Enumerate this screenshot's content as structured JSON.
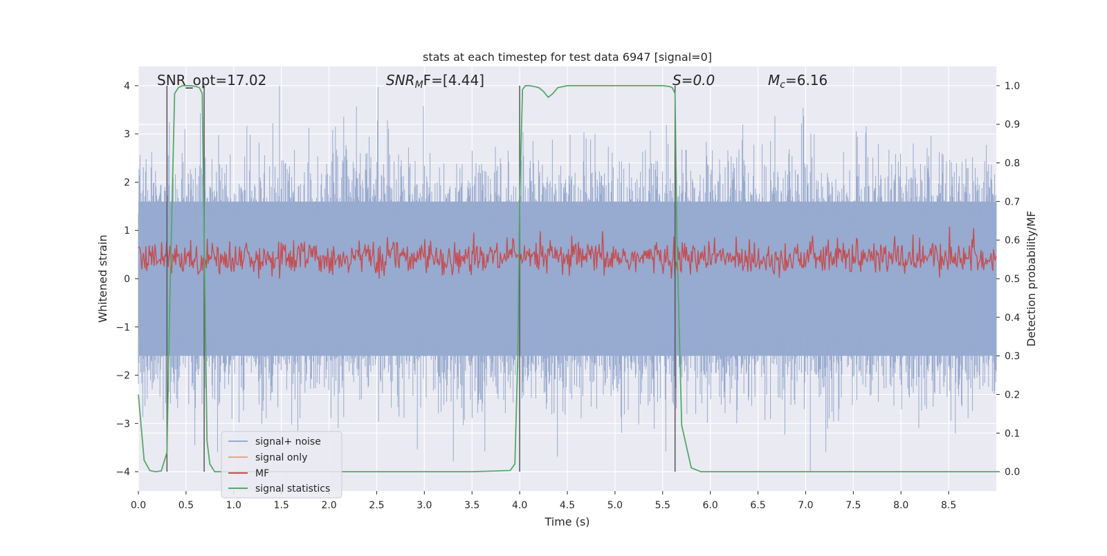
{
  "chart_data": {
    "type": "line",
    "title": "stats at each timestep for test data 6947 [signal=0]",
    "xlabel": "Time (s)",
    "ylabel_left": "Whitened strain",
    "ylabel_right": "Detection probability/MF",
    "xlim": [
      0.0,
      9.0
    ],
    "ylim_left": [
      -4.4,
      4.4
    ],
    "ylim_right": [
      -0.05,
      1.05
    ],
    "x_ticks": [
      0.0,
      0.5,
      1.0,
      1.5,
      2.0,
      2.5,
      3.0,
      3.5,
      4.0,
      4.5,
      5.0,
      5.5,
      6.0,
      6.5,
      7.0,
      7.5,
      8.0,
      8.5
    ],
    "x_tick_labels": [
      "0.0",
      "0.5",
      "1.0",
      "1.5",
      "2.0",
      "2.5",
      "3.0",
      "3.5",
      "4.0",
      "4.5",
      "5.0",
      "5.5",
      "6.0",
      "6.5",
      "7.0",
      "7.5",
      "8.0",
      "8.5"
    ],
    "y_left_ticks": [
      -4,
      -3,
      -2,
      -1,
      0,
      1,
      2,
      3,
      4
    ],
    "y_left_tick_labels": [
      "−4",
      "−3",
      "−2",
      "−1",
      "0",
      "1",
      "2",
      "3",
      "4"
    ],
    "y_right_ticks": [
      0.0,
      0.1,
      0.2,
      0.3,
      0.4,
      0.5,
      0.6,
      0.7,
      0.8,
      0.9,
      1.0
    ],
    "y_right_tick_labels": [
      "0.0",
      "0.1",
      "0.2",
      "0.3",
      "0.4",
      "0.5",
      "0.6",
      "0.7",
      "0.8",
      "0.9",
      "1.0"
    ],
    "grid": true,
    "annotations": {
      "snr_opt": "SNR_opt=17.02",
      "snr_mf_main": "SNR",
      "snr_mf_sub": "M",
      "snr_mf_rest": "F=[4.44]",
      "s_text": "S=0.0",
      "mc_main": "M",
      "mc_sub": "c",
      "mc_rest": "=6.16"
    },
    "vertical_markers_x": [
      0.3,
      0.69,
      4.0,
      5.63
    ],
    "series": [
      {
        "name": "signal+ noise",
        "color": "#97aacf",
        "axis": "left",
        "style": "dense noise band, amplitude about ±1.6 with peaks to ±4"
      },
      {
        "name": "signal only",
        "color": "#e8a58a",
        "axis": "left",
        "x": [],
        "y": []
      },
      {
        "name": "MF",
        "color": "#c44e52",
        "axis": "right",
        "style": "noisy band between 0.50 and 0.62 detection-axis units"
      },
      {
        "name": "signal statistics",
        "color": "#55a868",
        "axis": "right",
        "x": [
          0.0,
          0.06,
          0.12,
          0.18,
          0.24,
          0.3,
          0.33,
          0.38,
          0.42,
          0.46,
          0.5,
          0.55,
          0.6,
          0.64,
          0.67,
          0.69,
          0.72,
          0.75,
          0.8,
          0.85,
          1.0,
          1.5,
          2.0,
          2.5,
          3.0,
          3.5,
          3.9,
          3.95,
          3.98,
          4.0,
          4.03,
          4.06,
          4.1,
          4.15,
          4.2,
          4.25,
          4.3,
          4.35,
          4.4,
          4.5,
          5.0,
          5.5,
          5.57,
          5.6,
          5.63,
          5.65,
          5.7,
          5.8,
          5.9,
          6.0,
          7.0,
          8.0,
          9.0
        ],
        "y": [
          0.2,
          0.03,
          0.003,
          0.0,
          0.002,
          0.05,
          0.45,
          0.98,
          0.995,
          1.0,
          1.0,
          1.0,
          0.998,
          0.995,
          0.98,
          0.6,
          0.08,
          0.02,
          0.0,
          0.0,
          0.0,
          0.0,
          0.0,
          0.0,
          0.0,
          0.0,
          0.003,
          0.02,
          0.3,
          0.7,
          0.99,
          1.0,
          1.0,
          0.998,
          0.995,
          0.985,
          0.97,
          0.98,
          0.995,
          1.0,
          1.0,
          1.0,
          0.998,
          0.995,
          0.98,
          0.6,
          0.12,
          0.01,
          0.0,
          0.0,
          0.0,
          0.0,
          0.0
        ]
      }
    ],
    "legend": [
      "signal+ noise",
      "signal only",
      "MF",
      "signal statistics"
    ],
    "legend_position": "lower-left"
  }
}
